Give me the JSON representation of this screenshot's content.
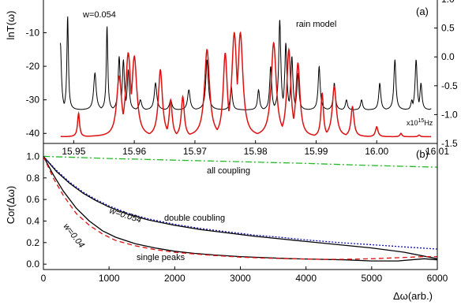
{
  "chart_data": [
    {
      "panel_label": "(a)",
      "type": "line",
      "ylabel_left": "lnT(ω)",
      "xlim": [
        15.945,
        16.01
      ],
      "ylim_left": [
        -43,
        0
      ],
      "ylim_right": [
        -1.5,
        1.0
      ],
      "x_ticks": [
        "15.95",
        "15.96",
        "15.97",
        "15.98",
        "15.99",
        "16.00",
        "16.01"
      ],
      "y_ticks_left": [
        "-10",
        "-20",
        "-30",
        "-40"
      ],
      "y_ticks_right": [
        "1.0",
        "0.5",
        "0.0",
        "-0.5",
        "-1.0",
        "-1.5"
      ],
      "x_unit_label": "x10",
      "x_unit_exp": "15",
      "x_unit_suffix": "Hz",
      "annotations": [
        "w=0.054",
        "rain model"
      ],
      "series": [
        {
          "color": "#000000",
          "baseline": -33,
          "peaks": [
            [
              15.9478,
              -13,
              0.0004
            ],
            [
              15.949,
              -5,
              0.0003
            ],
            [
              15.9535,
              -22,
              0.0005
            ],
            [
              15.9555,
              -8,
              0.0003
            ],
            [
              15.9575,
              -17,
              0.0004
            ],
            [
              15.9582,
              -18,
              0.0004
            ],
            [
              15.959,
              -21,
              0.0004
            ],
            [
              15.961,
              -30,
              0.0005
            ],
            [
              15.9635,
              -25,
              0.0005
            ],
            [
              15.966,
              -30,
              0.0005
            ],
            [
              15.969,
              -27,
              0.0005
            ],
            [
              15.972,
              -18,
              0.0005
            ],
            [
              15.976,
              -26,
              0.0004
            ],
            [
              15.9805,
              -27,
              0.0004
            ],
            [
              15.9825,
              -20,
              0.0004
            ],
            [
              15.984,
              -6,
              0.0004
            ],
            [
              15.985,
              -13,
              0.0004
            ],
            [
              15.986,
              -17,
              0.0004
            ],
            [
              15.987,
              -22,
              0.0004
            ],
            [
              15.9905,
              -20,
              0.0004
            ],
            [
              15.993,
              -25,
              0.0004
            ],
            [
              15.995,
              -30,
              0.0004
            ],
            [
              15.9975,
              -30,
              0.0004
            ],
            [
              16.0005,
              -25,
              0.0004
            ],
            [
              16.003,
              -18,
              0.0004
            ],
            [
              16.005,
              -35,
              0.0004
            ],
            [
              16.0058,
              -30,
              0.0004
            ],
            [
              16.0065,
              -18,
              0.0004
            ],
            [
              16.0073,
              -25,
              0.0004
            ],
            [
              16.008,
              -35,
              0.0004
            ],
            [
              16.0095,
              -30,
              0.0004
            ]
          ]
        },
        {
          "color": "#dd1111",
          "baseline": -41,
          "peaks": [
            [
              15.9508,
              -34,
              0.0004
            ],
            [
              15.9575,
              -23,
              0.001
            ],
            [
              15.959,
              -16,
              0.001
            ],
            [
              15.96,
              -17,
              0.001
            ],
            [
              15.9643,
              -21,
              0.0008
            ],
            [
              15.966,
              -30,
              0.0006
            ],
            [
              15.968,
              -29,
              0.0006
            ],
            [
              15.972,
              -15,
              0.001
            ],
            [
              15.975,
              -16,
              0.0008
            ],
            [
              15.9765,
              -10,
              0.001
            ],
            [
              15.9775,
              -10,
              0.001
            ],
            [
              15.983,
              -13,
              0.001
            ],
            [
              15.9855,
              -15,
              0.0008
            ],
            [
              15.987,
              -19,
              0.0008
            ],
            [
              15.991,
              -28,
              0.0005
            ],
            [
              15.993,
              -26,
              0.0008
            ],
            [
              15.996,
              -32,
              0.0006
            ],
            [
              16.0,
              -38,
              0.0005
            ],
            [
              16.004,
              -40,
              0.0004
            ],
            [
              16.007,
              -40.5,
              0.0004
            ],
            [
              16.009,
              -41,
              0.0004
            ]
          ]
        }
      ]
    },
    {
      "panel_label": "(b)",
      "type": "line",
      "ylabel": "Cor(Δω)",
      "xlabel": "Δω(arb.)",
      "xlim": [
        0,
        6000
      ],
      "ylim": [
        -0.05,
        1.12
      ],
      "x_ticks": [
        "0",
        "1000",
        "2000",
        "3000",
        "4000",
        "5000",
        "6000"
      ],
      "y_ticks": [
        "1.0",
        "0.8",
        "0.6",
        "0.4",
        "0.2",
        "0.0"
      ],
      "annotations": [
        "all coupling",
        "w=0.054",
        "double coubling",
        "w=0.04",
        "single peaks"
      ],
      "series": [
        {
          "color": "#22bb22",
          "dash": "8,3,2,3",
          "x": [
            0,
            1000,
            2000,
            3000,
            4000,
            5000,
            6000
          ],
          "y": [
            1.0,
            0.98,
            0.965,
            0.95,
            0.935,
            0.915,
            0.9
          ]
        },
        {
          "color": "#000000",
          "dash": "",
          "x": [
            0,
            200,
            400,
            600,
            800,
            1000,
            1300,
            1600,
            2000,
            2400,
            2800,
            3200,
            3600,
            4000,
            4500,
            5000,
            5500,
            6000
          ],
          "y": [
            1.0,
            0.86,
            0.75,
            0.66,
            0.59,
            0.53,
            0.46,
            0.41,
            0.36,
            0.32,
            0.29,
            0.26,
            0.235,
            0.21,
            0.18,
            0.15,
            0.11,
            0.05
          ]
        },
        {
          "color": "#1111aa",
          "dash": "2,2",
          "x": [
            0,
            200,
            400,
            600,
            800,
            1000,
            1300,
            1600,
            2000,
            2400,
            2800,
            3200,
            3600,
            4000,
            4500,
            5000,
            5500,
            6000
          ],
          "y": [
            1.0,
            0.87,
            0.76,
            0.67,
            0.6,
            0.54,
            0.47,
            0.42,
            0.37,
            0.33,
            0.3,
            0.27,
            0.25,
            0.225,
            0.2,
            0.18,
            0.16,
            0.14
          ]
        },
        {
          "color": "#000000",
          "dash": "",
          "x": [
            0,
            150,
            300,
            500,
            700,
            900,
            1100,
            1400,
            1700,
            2000,
            2300,
            2600,
            3000,
            3400,
            3800,
            4200,
            4600,
            5000,
            5400,
            5800,
            6000
          ],
          "y": [
            1.0,
            0.83,
            0.68,
            0.52,
            0.4,
            0.31,
            0.25,
            0.19,
            0.15,
            0.12,
            0.1,
            0.085,
            0.07,
            0.06,
            0.05,
            0.045,
            0.04,
            0.03,
            0.03,
            0.05,
            0.04
          ]
        },
        {
          "color": "#dd1111",
          "dash": "6,4",
          "x": [
            0,
            150,
            300,
            500,
            700,
            900,
            1100,
            1400,
            1700,
            2000,
            2300,
            2600,
            3000,
            3400,
            3800,
            4200,
            4600,
            5000,
            5400,
            5800,
            6000
          ],
          "y": [
            1.0,
            0.8,
            0.64,
            0.47,
            0.36,
            0.28,
            0.22,
            0.17,
            0.135,
            0.11,
            0.095,
            0.08,
            0.065,
            0.055,
            0.05,
            0.045,
            0.045,
            0.05,
            0.06,
            0.07,
            0.07
          ]
        }
      ]
    }
  ]
}
